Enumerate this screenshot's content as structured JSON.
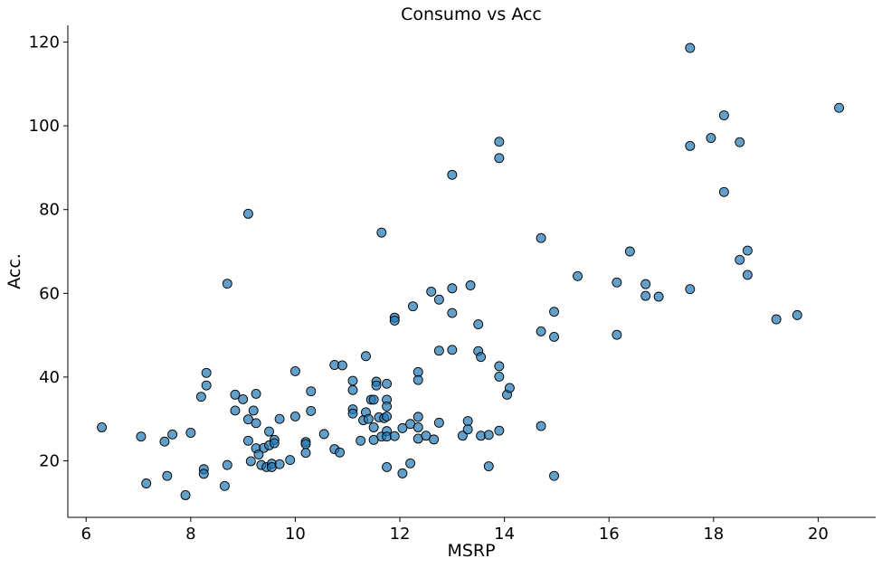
{
  "chart_data": {
    "type": "scatter",
    "title": "Consumo vs Acc",
    "xlabel": "MSRP",
    "ylabel": "Acc.",
    "xlim": [
      5.65,
      21.1
    ],
    "ylim": [
      6.5,
      124
    ],
    "xticks": [
      6,
      8,
      10,
      12,
      14,
      16,
      18,
      20
    ],
    "yticks": [
      20,
      40,
      60,
      80,
      100,
      120
    ],
    "grid": false,
    "colors": {
      "point_fill": "#1f77b4",
      "point_edge": "#000000"
    },
    "points": [
      [
        6.3,
        28.0
      ],
      [
        7.05,
        25.8
      ],
      [
        7.15,
        14.6
      ],
      [
        7.5,
        24.6
      ],
      [
        7.55,
        16.4
      ],
      [
        7.65,
        26.3
      ],
      [
        7.9,
        11.8
      ],
      [
        8.0,
        26.7
      ],
      [
        8.2,
        35.3
      ],
      [
        8.25,
        18.0
      ],
      [
        8.25,
        16.9
      ],
      [
        8.3,
        41.0
      ],
      [
        8.3,
        38.0
      ],
      [
        8.65,
        14.0
      ],
      [
        8.7,
        19.0
      ],
      [
        8.7,
        62.3
      ],
      [
        8.85,
        35.8
      ],
      [
        8.85,
        32.0
      ],
      [
        9.0,
        34.7
      ],
      [
        9.1,
        79.0
      ],
      [
        9.1,
        29.9
      ],
      [
        9.1,
        24.8
      ],
      [
        9.15,
        19.9
      ],
      [
        9.2,
        32.0
      ],
      [
        9.25,
        36.0
      ],
      [
        9.25,
        29.0
      ],
      [
        9.25,
        23.0
      ],
      [
        9.3,
        21.5
      ],
      [
        9.35,
        19.0
      ],
      [
        9.4,
        23.1
      ],
      [
        9.45,
        18.5
      ],
      [
        9.5,
        27.0
      ],
      [
        9.5,
        23.7
      ],
      [
        9.55,
        19.3
      ],
      [
        9.55,
        18.5
      ],
      [
        9.6,
        25.0
      ],
      [
        9.6,
        24.2
      ],
      [
        9.7,
        30.0
      ],
      [
        9.7,
        19.2
      ],
      [
        9.9,
        20.2
      ],
      [
        10.0,
        41.4
      ],
      [
        10.0,
        30.6
      ],
      [
        10.2,
        24.5
      ],
      [
        10.2,
        24.0
      ],
      [
        10.2,
        21.9
      ],
      [
        10.3,
        36.6
      ],
      [
        10.3,
        31.9
      ],
      [
        10.55,
        26.4
      ],
      [
        10.75,
        42.9
      ],
      [
        10.75,
        22.8
      ],
      [
        10.85,
        22.0
      ],
      [
        10.9,
        42.8
      ],
      [
        11.1,
        39.1
      ],
      [
        11.1,
        36.9
      ],
      [
        11.1,
        32.3
      ],
      [
        11.1,
        31.3
      ],
      [
        11.25,
        24.8
      ],
      [
        11.3,
        29.7
      ],
      [
        11.35,
        45.0
      ],
      [
        11.35,
        31.6
      ],
      [
        11.4,
        30.0
      ],
      [
        11.45,
        34.6
      ],
      [
        11.5,
        34.6
      ],
      [
        11.5,
        28.0
      ],
      [
        11.5,
        25.0
      ],
      [
        11.55,
        38.9
      ],
      [
        11.55,
        38.0
      ],
      [
        11.6,
        30.4
      ],
      [
        11.65,
        74.5
      ],
      [
        11.65,
        25.8
      ],
      [
        11.7,
        30.2
      ],
      [
        11.75,
        38.4
      ],
      [
        11.75,
        34.6
      ],
      [
        11.75,
        33.0
      ],
      [
        11.75,
        27.1
      ],
      [
        11.75,
        25.8
      ],
      [
        11.75,
        18.5
      ],
      [
        11.75,
        30.6
      ],
      [
        11.9,
        54.2
      ],
      [
        11.9,
        53.5
      ],
      [
        11.9,
        25.9
      ],
      [
        12.05,
        27.8
      ],
      [
        12.05,
        17.0
      ],
      [
        12.2,
        28.8
      ],
      [
        12.2,
        19.4
      ],
      [
        12.25,
        56.9
      ],
      [
        12.35,
        41.2
      ],
      [
        12.35,
        39.3
      ],
      [
        12.35,
        30.5
      ],
      [
        12.35,
        28.0
      ],
      [
        12.35,
        25.3
      ],
      [
        12.5,
        26.0
      ],
      [
        12.6,
        60.4
      ],
      [
        12.65,
        25.1
      ],
      [
        12.75,
        58.5
      ],
      [
        12.75,
        46.3
      ],
      [
        12.75,
        29.1
      ],
      [
        13.0,
        88.3
      ],
      [
        13.0,
        61.2
      ],
      [
        13.0,
        55.3
      ],
      [
        13.0,
        46.5
      ],
      [
        13.2,
        26.0
      ],
      [
        13.3,
        29.5
      ],
      [
        13.3,
        27.5
      ],
      [
        13.35,
        61.9
      ],
      [
        13.5,
        52.6
      ],
      [
        13.5,
        46.2
      ],
      [
        13.55,
        44.8
      ],
      [
        13.55,
        26.0
      ],
      [
        13.7,
        26.2
      ],
      [
        13.7,
        18.7
      ],
      [
        13.9,
        96.2
      ],
      [
        13.9,
        92.3
      ],
      [
        13.9,
        42.6
      ],
      [
        13.9,
        40.1
      ],
      [
        13.9,
        27.2
      ],
      [
        14.05,
        35.8
      ],
      [
        14.1,
        37.4
      ],
      [
        14.7,
        73.2
      ],
      [
        14.7,
        50.9
      ],
      [
        14.7,
        28.3
      ],
      [
        14.95,
        55.6
      ],
      [
        14.95,
        49.6
      ],
      [
        14.95,
        16.4
      ],
      [
        15.4,
        64.1
      ],
      [
        16.15,
        62.6
      ],
      [
        16.15,
        50.1
      ],
      [
        16.4,
        70.0
      ],
      [
        16.7,
        62.2
      ],
      [
        16.7,
        59.4
      ],
      [
        16.95,
        59.2
      ],
      [
        17.55,
        118.6
      ],
      [
        17.55,
        95.2
      ],
      [
        17.55,
        61.0
      ],
      [
        17.95,
        97.1
      ],
      [
        18.2,
        102.5
      ],
      [
        18.2,
        84.2
      ],
      [
        18.5,
        96.1
      ],
      [
        18.5,
        68.0
      ],
      [
        18.65,
        70.2
      ],
      [
        18.65,
        64.4
      ],
      [
        19.2,
        53.8
      ],
      [
        19.6,
        54.8
      ],
      [
        20.4,
        104.3
      ]
    ]
  }
}
